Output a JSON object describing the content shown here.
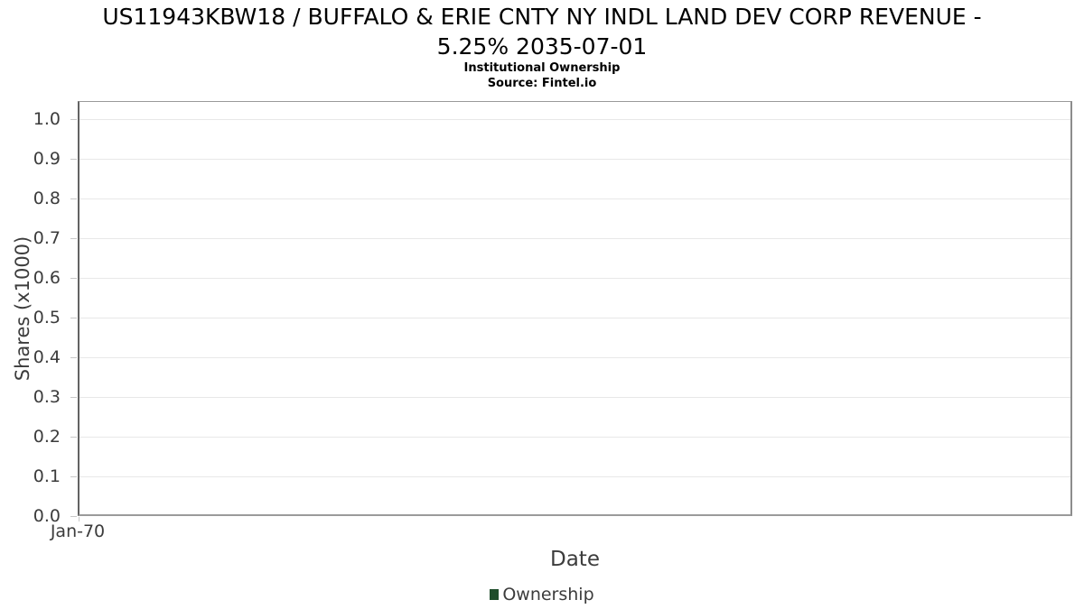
{
  "chart_data": {
    "type": "line",
    "title": "US11943KBW18 / BUFFALO & ERIE CNTY NY INDL LAND DEV CORP REVENUE - 5.25% 2035-07-01",
    "title_lines": [
      "US11943KBW18 / BUFFALO & ERIE CNTY NY INDL LAND DEV CORP REVENUE -",
      "5.25% 2035-07-01"
    ],
    "subtitle": "Institutional Ownership",
    "source": "Source: Fintel.io",
    "xlabel": "Date",
    "ylabel": "Shares (x1000)",
    "x_ticks": [
      "Jan-70"
    ],
    "y_ticks": [
      "1.0",
      "0.9",
      "0.8",
      "0.7",
      "0.6",
      "0.5",
      "0.4",
      "0.3",
      "0.2",
      "0.1",
      "0.0"
    ],
    "ylim": [
      0.0,
      1.045
    ],
    "grid": true,
    "legend_position": "bottom-center",
    "legend": [
      "Ownership"
    ],
    "series": [
      {
        "name": "Ownership",
        "color": "#1e4d2a",
        "x": [],
        "values": []
      }
    ],
    "colors": {
      "gridline": "#e8e8e8",
      "axis_border": "#8c8c8c",
      "tick_text": "#3c3c3c",
      "title_text": "#000000"
    },
    "layout": {
      "y_top_offset": 20,
      "y_step": 44
    }
  }
}
